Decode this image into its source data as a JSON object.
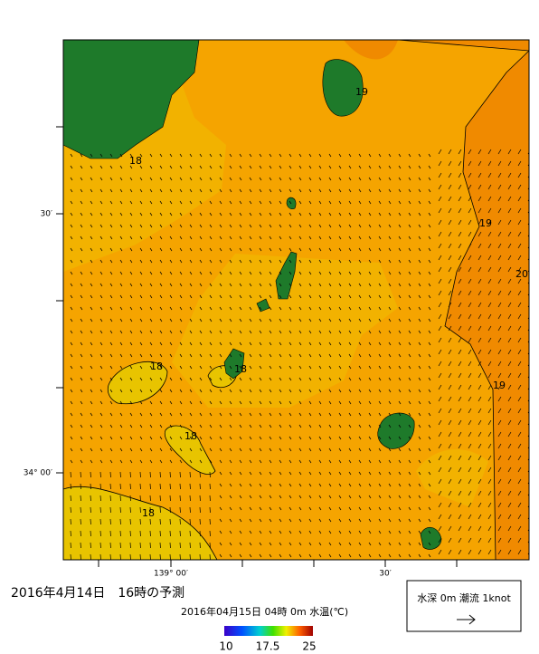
{
  "header": {
    "title": "2016年4月14日　16時の予測",
    "subtitle": "2016年04月15日 04時 0m 水温(℃)"
  },
  "map": {
    "lat_labels": [
      "30′",
      "34° 00′"
    ],
    "lon_labels": [
      "139° 00′",
      "30′"
    ],
    "contour_labels": [
      18,
      19,
      19,
      20,
      18,
      18,
      19,
      18,
      18
    ]
  },
  "colorbar": {
    "labels": [
      10,
      17.5,
      25
    ]
  },
  "legend": {
    "text": "水深 0m 潮流 1knot"
  }
}
